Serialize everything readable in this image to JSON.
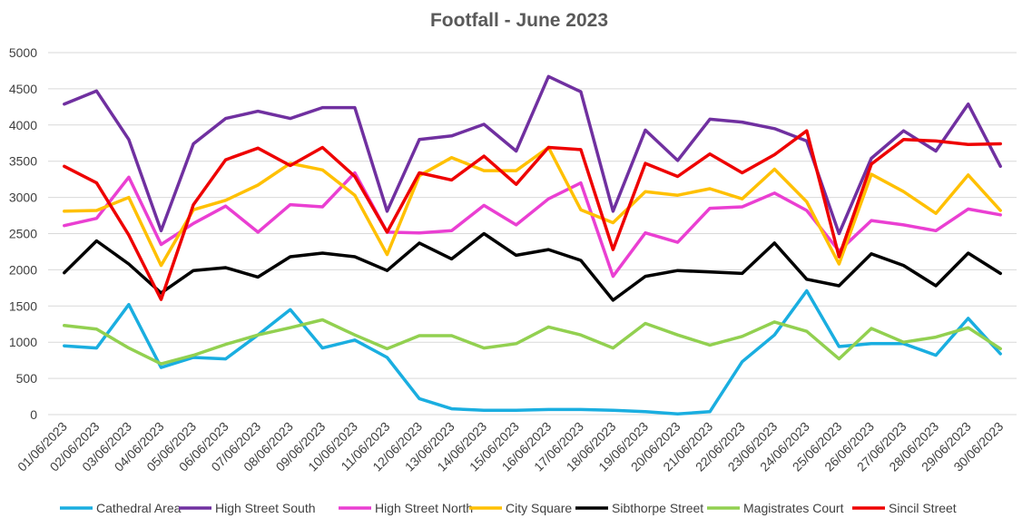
{
  "chart_data": {
    "type": "line",
    "title": "Footfall - June 2023",
    "xlabel": "",
    "ylabel": "",
    "ylim": [
      0,
      5000
    ],
    "yticks": [
      0,
      500,
      1000,
      1500,
      2000,
      2500,
      3000,
      3500,
      4000,
      4500,
      5000
    ],
    "grid": "horizontal",
    "legend_position": "bottom",
    "categories": [
      "01/06/2023",
      "02/06/2023",
      "03/06/2023",
      "04/06/2023",
      "05/06/2023",
      "06/06/2023",
      "07/06/2023",
      "08/06/2023",
      "09/06/2023",
      "10/06/2023",
      "11/06/2023",
      "12/06/2023",
      "13/06/2023",
      "14/06/2023",
      "15/06/2023",
      "16/06/2023",
      "17/06/2023",
      "18/06/2023",
      "19/06/2023",
      "20/06/2023",
      "21/06/2023",
      "22/06/2023",
      "23/06/2023",
      "24/06/2023",
      "25/06/2023",
      "26/06/2023",
      "27/06/2023",
      "28/06/2023",
      "29/06/2023",
      "30/06/2023"
    ],
    "series": [
      {
        "name": "Cathedral Area",
        "color": "#1aaee0",
        "values": [
          950,
          920,
          1520,
          650,
          790,
          770,
          1100,
          1450,
          920,
          1030,
          790,
          220,
          80,
          60,
          60,
          70,
          70,
          60,
          40,
          10,
          40,
          730,
          1100,
          1710,
          940,
          980,
          980,
          820,
          1330,
          840
        ]
      },
      {
        "name": "High Street South",
        "color": "#7030a0",
        "values": [
          4290,
          4470,
          3800,
          2540,
          3740,
          4090,
          4190,
          4090,
          4240,
          4240,
          2810,
          3800,
          3850,
          4010,
          3640,
          4670,
          4460,
          2810,
          3930,
          3510,
          4080,
          4040,
          3950,
          3780,
          2500,
          3540,
          3920,
          3640,
          4290,
          3430
        ]
      },
      {
        "name": "High Street North",
        "color": "#ea3fd2",
        "values": [
          2610,
          2710,
          3280,
          2350,
          2640,
          2880,
          2520,
          2900,
          2870,
          3340,
          2520,
          2510,
          2540,
          2890,
          2620,
          2980,
          3200,
          1910,
          2510,
          2380,
          2850,
          2870,
          3060,
          2820,
          2260,
          2680,
          2620,
          2540,
          2840,
          2760
        ]
      },
      {
        "name": "City Square",
        "color": "#ffc000",
        "values": [
          2810,
          2820,
          3000,
          2060,
          2830,
          2960,
          3170,
          3470,
          3380,
          3030,
          2210,
          3300,
          3550,
          3370,
          3370,
          3690,
          2830,
          2650,
          3080,
          3030,
          3120,
          2980,
          3390,
          2940,
          2080,
          3320,
          3080,
          2780,
          3310,
          2820
        ]
      },
      {
        "name": "Sibthorpe Street",
        "color": "#000000",
        "values": [
          1960,
          2400,
          2080,
          1680,
          1990,
          2030,
          1900,
          2180,
          2230,
          2180,
          1990,
          2370,
          2150,
          2500,
          2200,
          2280,
          2130,
          1580,
          1910,
          1990,
          1970,
          1950,
          2370,
          1870,
          1780,
          2220,
          2060,
          1780,
          2230,
          1950
        ]
      },
      {
        "name": "Magistrates Court",
        "color": "#92d050",
        "values": [
          1230,
          1180,
          920,
          700,
          820,
          970,
          1100,
          1200,
          1310,
          1100,
          910,
          1090,
          1090,
          920,
          980,
          1210,
          1100,
          920,
          1260,
          1100,
          960,
          1080,
          1280,
          1150,
          770,
          1190,
          1000,
          1070,
          1200,
          910
        ]
      },
      {
        "name": "Sincil Street",
        "color": "#ee0000",
        "values": [
          3430,
          3200,
          2480,
          1590,
          2900,
          3520,
          3680,
          3440,
          3690,
          3290,
          2520,
          3340,
          3240,
          3570,
          3180,
          3690,
          3660,
          2280,
          3470,
          3290,
          3600,
          3340,
          3590,
          3920,
          2180,
          3460,
          3800,
          3780,
          3730,
          3740
        ]
      }
    ]
  }
}
